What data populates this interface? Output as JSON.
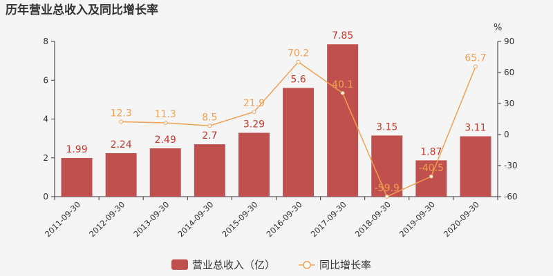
{
  "chart_data": {
    "type": "bar",
    "title": "历年营业总收入及同比增长率",
    "categories": [
      "2011-09-30",
      "2012-09-30",
      "2013-09-30",
      "2014-09-30",
      "2015-09-30",
      "2016-09-30",
      "2017-09-30",
      "2018-09-30",
      "2019-09-30",
      "2020-09-30"
    ],
    "series": [
      {
        "name": "营业总收入（亿）",
        "type": "bar",
        "axis": "left",
        "values": [
          1.99,
          2.24,
          2.49,
          2.7,
          3.29,
          5.6,
          7.85,
          3.15,
          1.87,
          3.11
        ],
        "labels": [
          "1.99",
          "2.24",
          "2.49",
          "2.7",
          "3.29",
          "5.6",
          "7.85",
          "3.15",
          "1.87",
          "3.11"
        ]
      },
      {
        "name": "同比增长率",
        "type": "line",
        "axis": "right",
        "values": [
          null,
          12.3,
          11.3,
          8.5,
          21.9,
          70.2,
          40.1,
          -59.9,
          -40.5,
          65.7
        ],
        "labels": [
          "",
          "12.3",
          "11.3",
          "8.5",
          "21.9",
          "70.2",
          "40.1",
          "-59.9",
          "-40.5",
          "65.7"
        ]
      }
    ],
    "y_left": {
      "ylim": [
        0,
        8
      ],
      "ticks": [
        "0",
        "2",
        "4",
        "6",
        "8"
      ]
    },
    "y_right": {
      "ylim": [
        -60,
        90
      ],
      "ticks": [
        "-60",
        "-30",
        "0",
        "30",
        "60",
        "90"
      ],
      "unit": "%"
    },
    "grid": false,
    "legend_position": "bottom-center",
    "colors": {
      "bar": "#c0504d",
      "line": "#f0a050",
      "bar_label": "#c0392b",
      "line_label": "#f0a050"
    }
  }
}
